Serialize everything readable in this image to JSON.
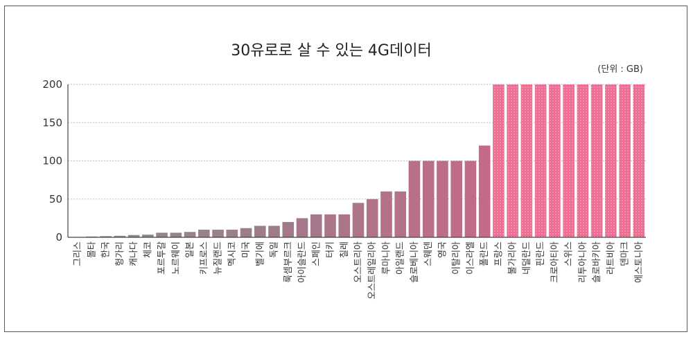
{
  "chart_data": {
    "type": "bar",
    "title": "30유로로 살 수 있는 4G데이터",
    "unit_label": "(단위 : GB)",
    "ylim": [
      0,
      200
    ],
    "yticks": [
      0,
      50,
      100,
      150,
      200
    ],
    "categories": [
      "그리스",
      "몰타",
      "한국",
      "헝가리",
      "캐나다",
      "체코",
      "포르투갈",
      "노르웨이",
      "일본",
      "키프로스",
      "뉴질랜드",
      "멕시코",
      "미국",
      "벨기에",
      "독일",
      "룩셈부르크",
      "아이슬란드",
      "스페인",
      "터키",
      "칠레",
      "오스트리아",
      "오스트레일리아",
      "루마니아",
      "아일랜드",
      "슬로베니아",
      "스웨덴",
      "영국",
      "이탈리아",
      "이스라엘",
      "폴란드",
      "프랑스",
      "불가리아",
      "네덜란드",
      "핀란드",
      "크로아티아",
      "스위스",
      "리투아니아",
      "슬로바키아",
      "라트비아",
      "덴마크",
      "에스토니아"
    ],
    "values": [
      0.5,
      1,
      1.5,
      2,
      3,
      3.5,
      6,
      6,
      7,
      10,
      10,
      10,
      12,
      15,
      15,
      20,
      25,
      30,
      30,
      30,
      45,
      50,
      60,
      60,
      100,
      100,
      100,
      100,
      100,
      120,
      200,
      200,
      200,
      200,
      200,
      200,
      200,
      200,
      200,
      200,
      200
    ],
    "colors": {
      "gray": "#8e8e8e",
      "mauve": "#a07a8a",
      "rose": "#c46a88",
      "pink": "#ec6f93"
    }
  }
}
